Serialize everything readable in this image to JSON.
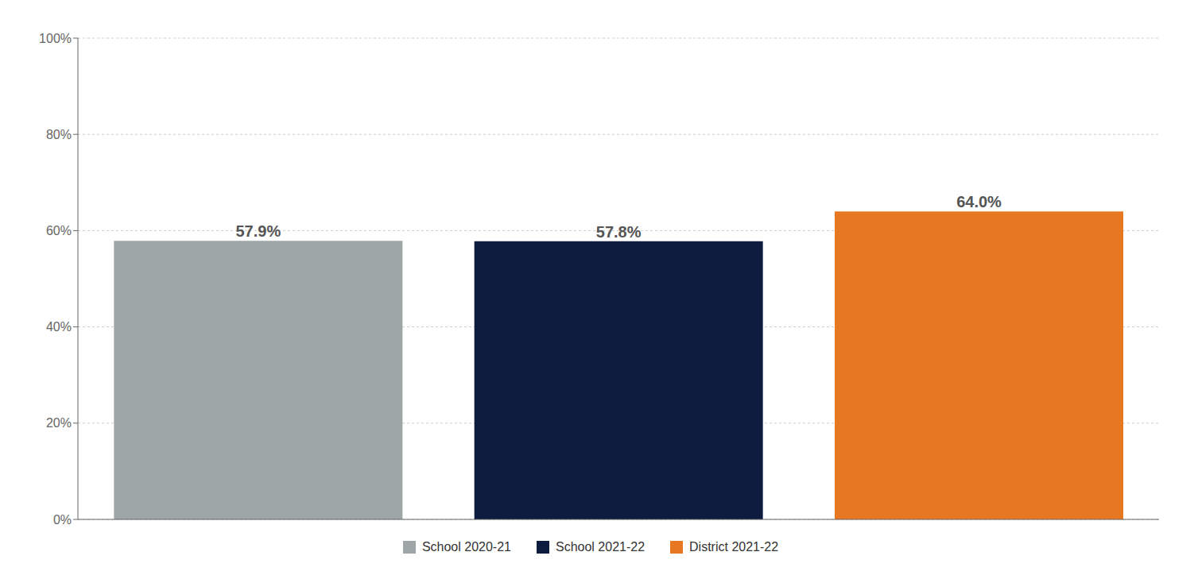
{
  "chart_data": {
    "type": "bar",
    "categories": [
      "School 2020-21",
      "School 2021-22",
      "District 2021-22"
    ],
    "values": [
      57.9,
      57.8,
      64.0
    ],
    "value_labels": [
      "57.9%",
      "57.8%",
      "64.0%"
    ],
    "colors": [
      "#9EA6A8",
      "#0D1B3E",
      "#E87722"
    ],
    "ylim": [
      0,
      100
    ],
    "yticks": [
      {
        "value": 0,
        "label": "0%"
      },
      {
        "value": 20,
        "label": "20%"
      },
      {
        "value": 40,
        "label": "40%"
      },
      {
        "value": 60,
        "label": "60%"
      },
      {
        "value": 80,
        "label": "80%"
      },
      {
        "value": 100,
        "label": "100%"
      }
    ],
    "grid": true,
    "legend": "bottom",
    "data_labels": true,
    "tick_labels": "y"
  }
}
